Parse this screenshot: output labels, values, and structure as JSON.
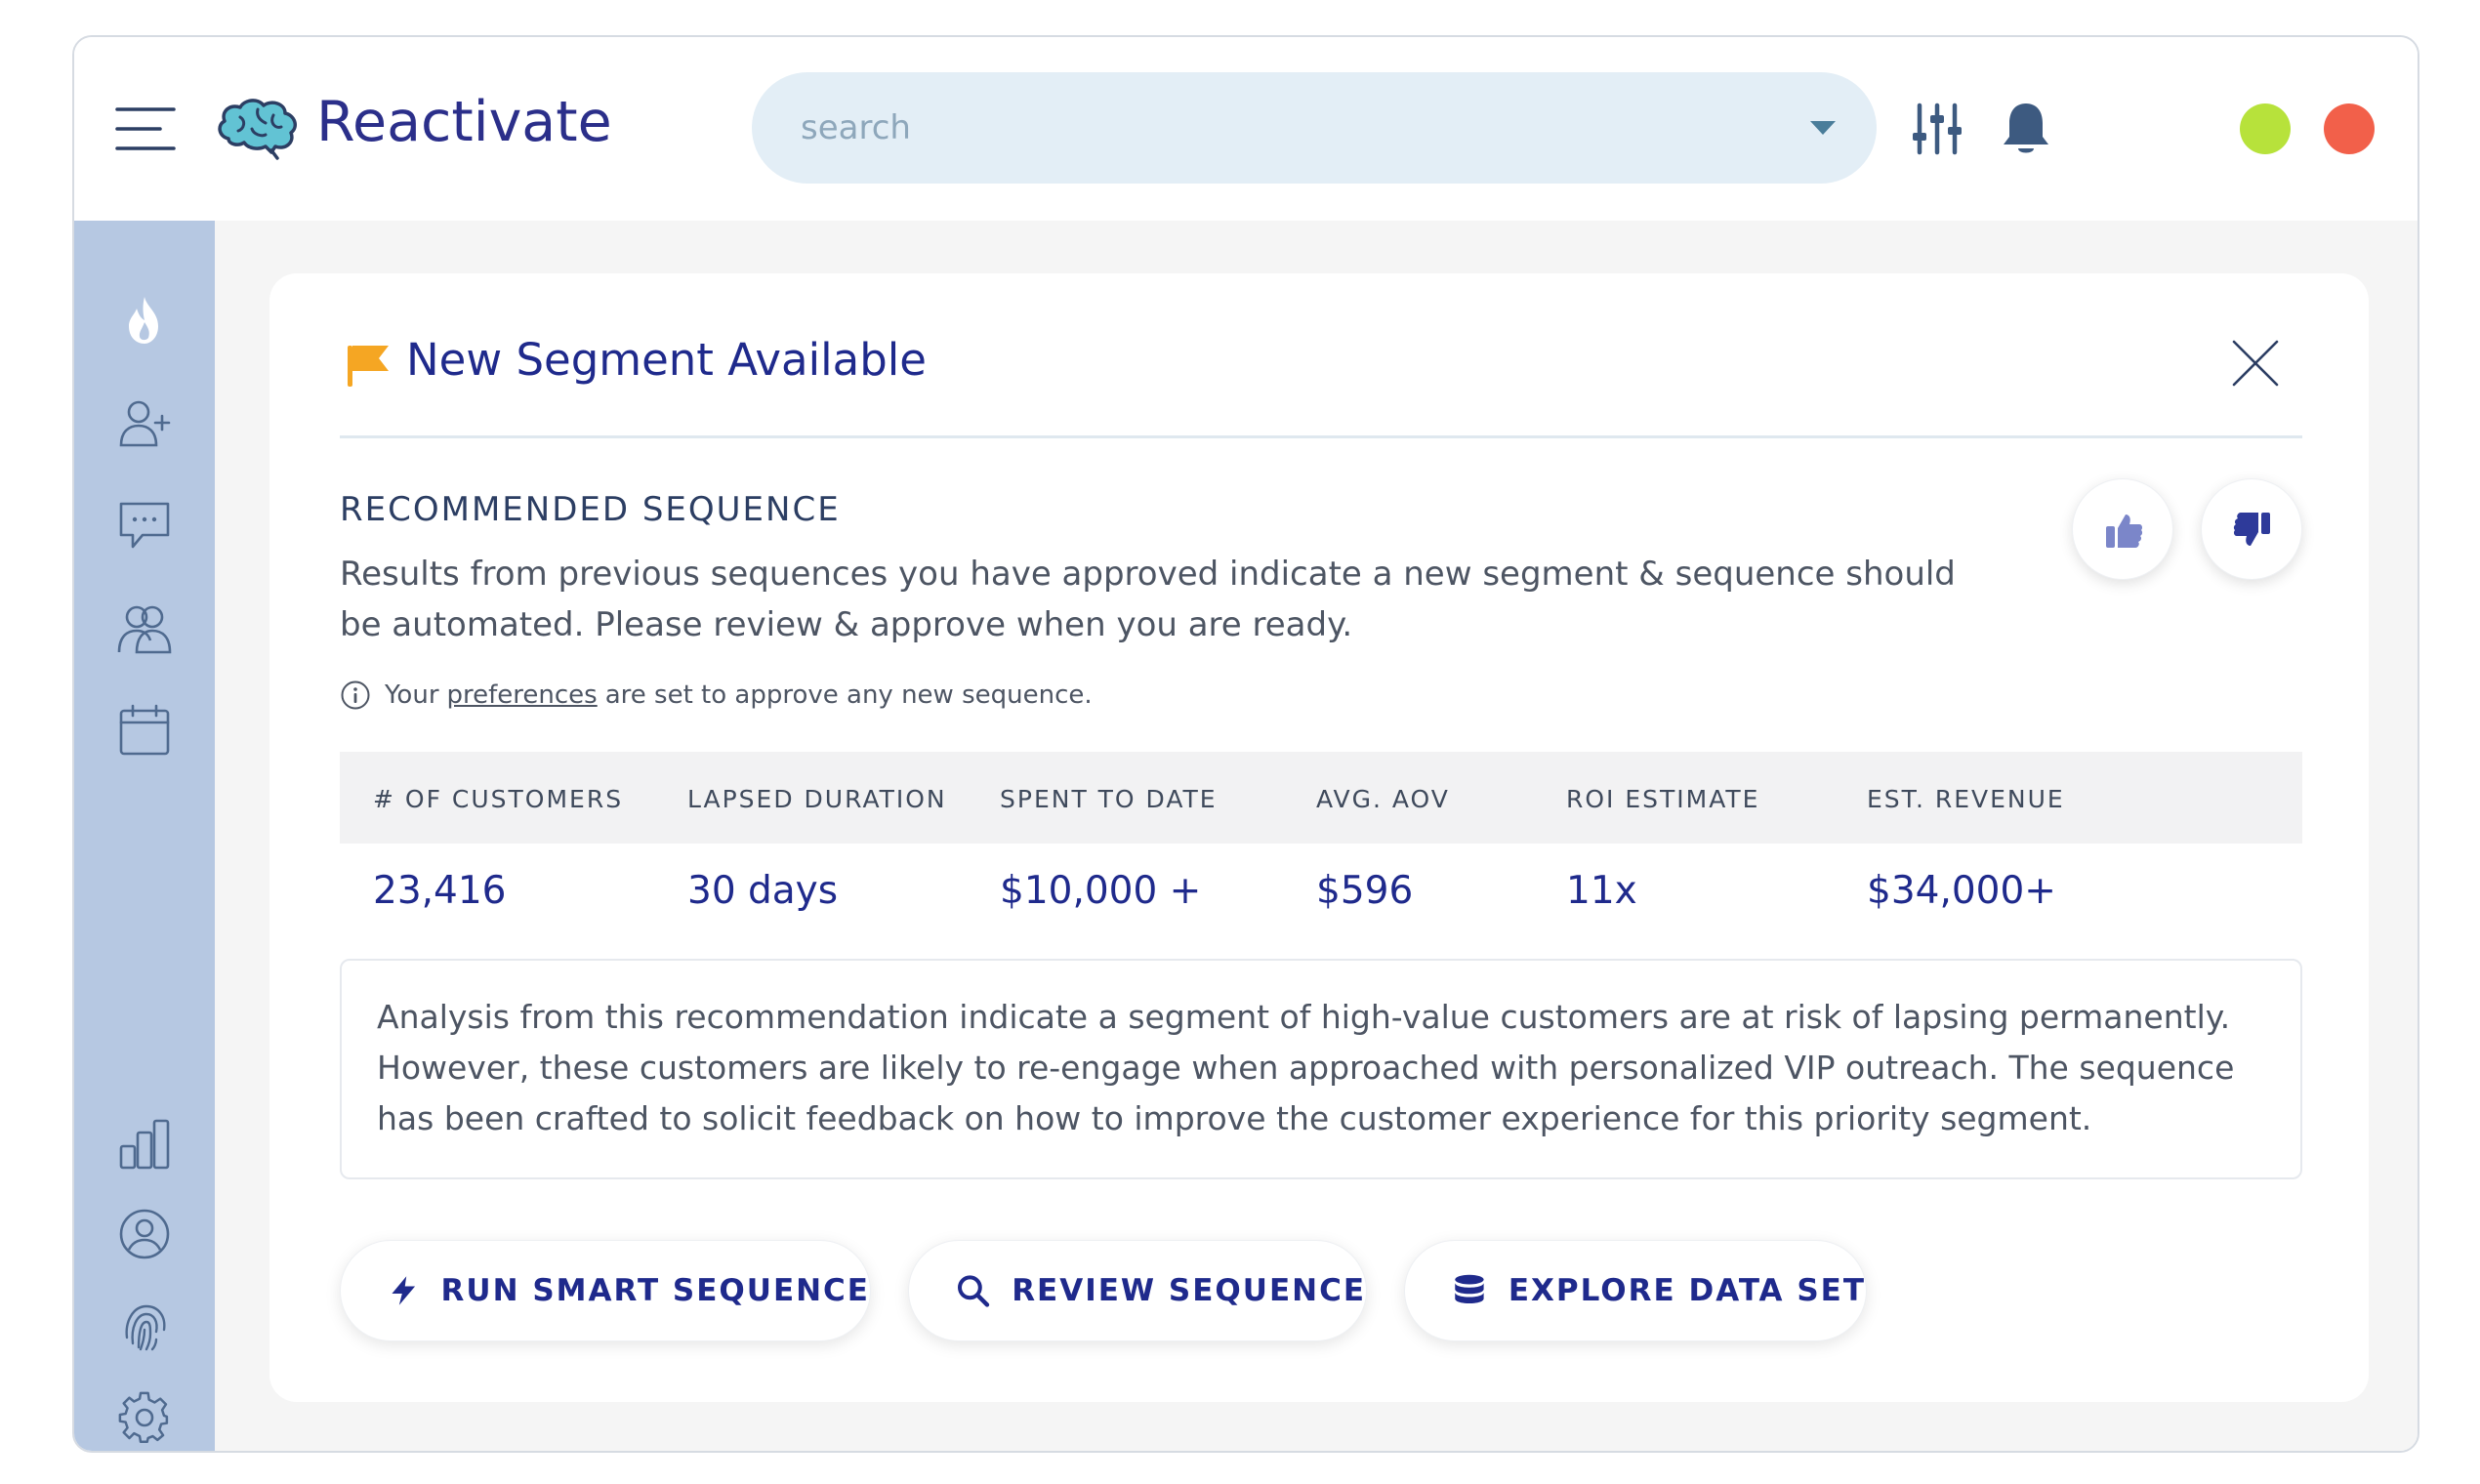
{
  "app": {
    "name": "Reactivate",
    "menu_icon": "hamburger-icon",
    "brand_icon": "brain-icon"
  },
  "search": {
    "placeholder": "search",
    "caret_icon": "caret-down-icon"
  },
  "header_actions": {
    "filter_icon": "sliders-icon",
    "notifications_icon": "bell-icon",
    "status_dots": [
      {
        "color": "#b7e23b"
      },
      {
        "color": "#f2604a"
      }
    ]
  },
  "sidebar": {
    "items": [
      {
        "icon": "flame-icon",
        "active": true
      },
      {
        "icon": "add-user-icon"
      },
      {
        "icon": "chat-icon"
      },
      {
        "icon": "users-icon"
      },
      {
        "icon": "calendar-icon"
      },
      {
        "icon": "bar-chart-icon"
      },
      {
        "icon": "profile-icon"
      },
      {
        "icon": "fingerprint-icon"
      },
      {
        "icon": "settings-icon"
      }
    ]
  },
  "card": {
    "flag_icon": "flag-icon",
    "title": "New Segment Available",
    "close_icon": "close-icon",
    "section_label": "RECOMMENDED SEQUENCE",
    "description": "Results from previous sequences you have approved indicate a new segment & sequence should be automated. Please review & approve when you are ready.",
    "thumbs_up_icon": "thumbs-up-icon",
    "thumbs_down_icon": "thumbs-down-icon",
    "preferences": {
      "prefix": "Your",
      "link": "preferences",
      "suffix": "are set to approve any new sequence."
    },
    "stats": [
      {
        "label": "# OF CUSTOMERS",
        "value": "23,416"
      },
      {
        "label": "LAPSED DURATION",
        "value": "30 days"
      },
      {
        "label": "SPENT TO DATE",
        "value": "$10,000 +"
      },
      {
        "label": "AVG. AOV",
        "value": "$596"
      },
      {
        "label": "ROI ESTIMATE",
        "value": "11x"
      },
      {
        "label": "EST. REVENUE",
        "value": "$34,000+"
      }
    ],
    "analysis": "Analysis from this recommendation indicate a segment of high-value customers are at risk of lapsing permanently. However, these customers are likely to re-engage when approached with personalized VIP outreach. The sequence has been crafted to solicit feedback on how to improve the customer experience for this priority segment.",
    "actions": [
      {
        "label": "RUN SMART SEQUENCE",
        "icon": "lightning-icon"
      },
      {
        "label": "REVIEW SEQUENCE",
        "icon": "search-icon"
      },
      {
        "label": "EXPLORE DATA SET",
        "icon": "database-icon"
      }
    ]
  },
  "colors": {
    "brand": "#2b2f8a",
    "accent": "#1f2a8c",
    "sidebar": "#b6c8e2",
    "flag": "#f5a623",
    "vote": "#7b86c9"
  }
}
